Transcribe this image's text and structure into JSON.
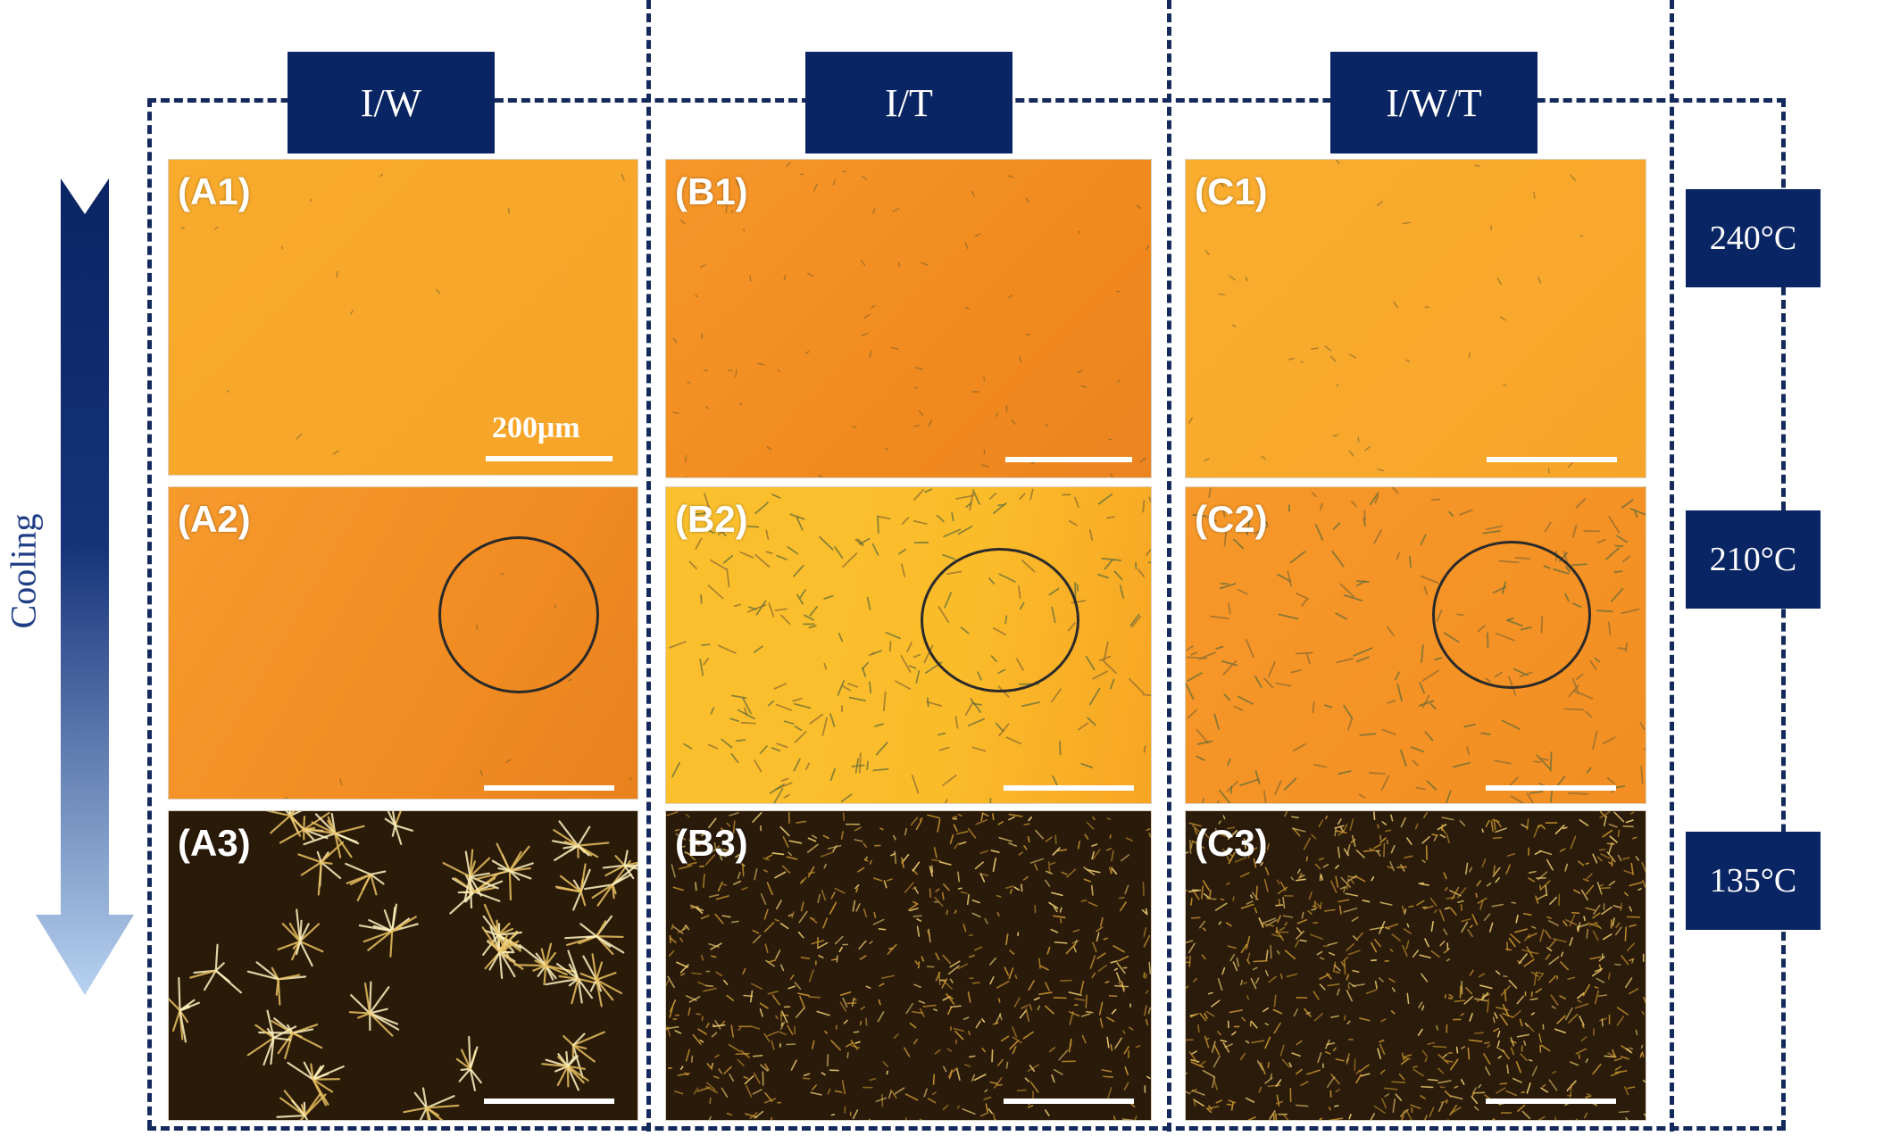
{
  "columns": {
    "iw": "I/W",
    "it": "I/T",
    "iwt": "I/W/T"
  },
  "temperatures": {
    "t1": "240°C",
    "t2": "210°C",
    "t3": "135°C"
  },
  "cooling_label": "Cooling",
  "scale_label": "200μm",
  "panels": {
    "a1": "(A1)",
    "a2": "(A2)",
    "a3": "(A3)",
    "b1": "(B1)",
    "b2": "(B2)",
    "b3": "(B3)",
    "c1": "(C1)",
    "c2": "(C2)",
    "c3": "(C3)"
  },
  "colors": {
    "frame": "#152a5c",
    "label_bg": "#0a2563",
    "arrow_top": "#0a2563",
    "arrow_bottom": "#b8d2f0",
    "melt_light": "#f7a72a",
    "melt_deep": "#f08c1c",
    "melt_yellow": "#fbbd2c",
    "crystal_bg": "#2a1a08"
  }
}
